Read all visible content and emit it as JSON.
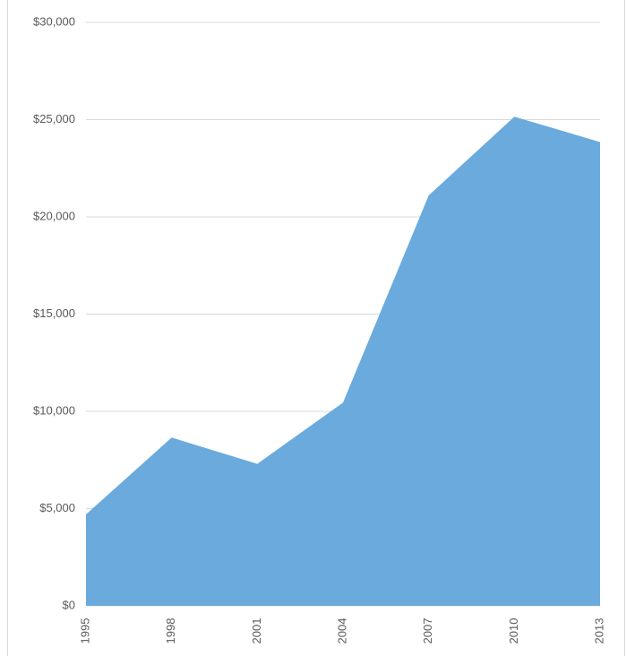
{
  "chart_data": {
    "type": "area",
    "categories": [
      "1995",
      "1998",
      "2001",
      "2004",
      "2007",
      "2010",
      "2013"
    ],
    "values": [
      4700,
      8650,
      7300,
      10450,
      21100,
      25150,
      23850
    ],
    "color": "#6aaadc",
    "ylim": [
      0,
      30000
    ],
    "yticks": [
      {
        "value": 0,
        "label": "$0"
      },
      {
        "value": 5000,
        "label": "$5,000"
      },
      {
        "value": 10000,
        "label": "$10,000"
      },
      {
        "value": 15000,
        "label": "$15,000"
      },
      {
        "value": 20000,
        "label": "$20,000"
      },
      {
        "value": 25000,
        "label": "$25,000"
      },
      {
        "value": 30000,
        "label": "$30,000"
      }
    ],
    "grid": true
  }
}
